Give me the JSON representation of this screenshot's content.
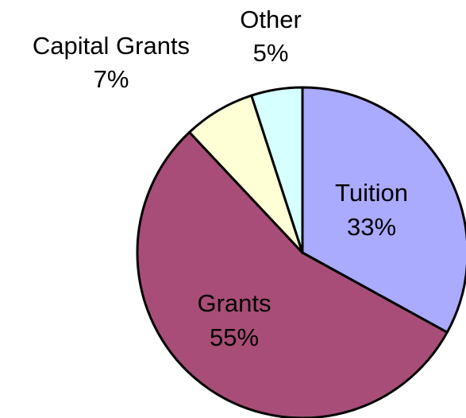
{
  "chart_data": {
    "type": "pie",
    "title": "",
    "slices": [
      {
        "label": "Tuition",
        "value": 33,
        "value_label": "33%",
        "color": "#aaaaff",
        "label_inside": true
      },
      {
        "label": "Grants",
        "value": 55,
        "value_label": "55%",
        "color": "#a84d77",
        "label_inside": true
      },
      {
        "label": "Capital Grants",
        "value": 7,
        "value_label": "7%",
        "color": "#ffffd6",
        "label_inside": false
      },
      {
        "label": "Other",
        "value": 5,
        "value_label": "5%",
        "color": "#d6ffff",
        "label_inside": false
      }
    ],
    "start_angle_deg": 0,
    "direction": "clockwise",
    "legend": "none"
  }
}
